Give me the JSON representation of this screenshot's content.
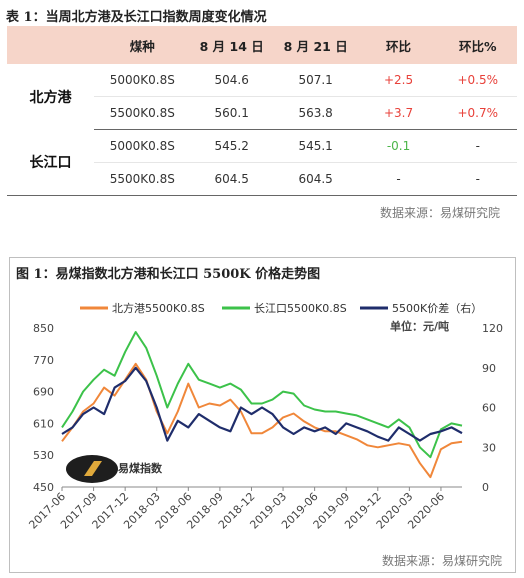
{
  "table_caption": "表 1：当周北方港及长江口指数周度变化情况",
  "table": {
    "headers": [
      "煤种",
      "8 月 14 日",
      "8 月 21 日",
      "环比",
      "环比%"
    ],
    "groups": [
      {
        "region": "北方港",
        "rows": [
          {
            "coal": "5000K0.8S",
            "aug14": "504.6",
            "aug21": "507.1",
            "chg": "+2.5",
            "pct": "+0.5%",
            "color": "red"
          },
          {
            "coal": "5500K0.8S",
            "aug14": "560.1",
            "aug21": "563.8",
            "chg": "+3.7",
            "pct": "+0.7%",
            "color": "red"
          }
        ]
      },
      {
        "region": "长江口",
        "rows": [
          {
            "coal": "5000K0.8S",
            "aug14": "545.2",
            "aug21": "545.1",
            "chg": "-0.1",
            "pct": "-",
            "color": "green"
          },
          {
            "coal": "5500K0.8S",
            "aug14": "604.5",
            "aug21": "604.5",
            "chg": "-",
            "pct": "-",
            "color": "none"
          }
        ]
      }
    ]
  },
  "table_source": "数据来源：易煤研究院",
  "chart_caption": "图 1：易煤指数北方港和长江口 5500K 价格走势图",
  "chart_source": "数据来源：易煤研究院",
  "watermark_text": "易煤指数",
  "chart_data": {
    "type": "line",
    "unit_label": "单位：元/吨",
    "x_ticks": [
      "2017-06",
      "2017-09",
      "2017-12",
      "2018-03",
      "2018-06",
      "2018-09",
      "2018-12",
      "2019-03",
      "2019-06",
      "2019-09",
      "2019-12",
      "2020-03",
      "2020-06"
    ],
    "x_range": [
      "2017-06",
      "2020-08"
    ],
    "left_axis": {
      "ticks": [
        450,
        530,
        610,
        690,
        770,
        850
      ],
      "range": [
        450,
        850
      ]
    },
    "right_axis": {
      "ticks": [
        0,
        30,
        60,
        90,
        120
      ],
      "range": [
        0,
        120
      ]
    },
    "grid": false,
    "legend": "top",
    "colors": {
      "north": "#f0873a",
      "yangtze": "#3cc24a",
      "spread": "#1f2d6b"
    },
    "series": [
      {
        "name": "北方港5500K0.8S",
        "axis": "left",
        "points": [
          [
            "2017-06",
            565
          ],
          [
            "2017-07",
            600
          ],
          [
            "2017-08",
            640
          ],
          [
            "2017-09",
            660
          ],
          [
            "2017-10",
            700
          ],
          [
            "2017-11",
            680
          ],
          [
            "2017-12",
            720
          ],
          [
            "2018-01",
            760
          ],
          [
            "2018-02",
            720
          ],
          [
            "2018-03",
            640
          ],
          [
            "2018-04",
            585
          ],
          [
            "2018-05",
            640
          ],
          [
            "2018-06",
            710
          ],
          [
            "2018-07",
            650
          ],
          [
            "2018-08",
            660
          ],
          [
            "2018-09",
            655
          ],
          [
            "2018-10",
            670
          ],
          [
            "2018-11",
            640
          ],
          [
            "2018-12",
            585
          ],
          [
            "2019-01",
            585
          ],
          [
            "2019-02",
            600
          ],
          [
            "2019-03",
            625
          ],
          [
            "2019-04",
            635
          ],
          [
            "2019-05",
            615
          ],
          [
            "2019-06",
            600
          ],
          [
            "2019-07",
            590
          ],
          [
            "2019-08",
            590
          ],
          [
            "2019-09",
            580
          ],
          [
            "2019-10",
            570
          ],
          [
            "2019-11",
            555
          ],
          [
            "2019-12",
            550
          ],
          [
            "2020-01",
            555
          ],
          [
            "2020-02",
            560
          ],
          [
            "2020-03",
            555
          ],
          [
            "2020-04",
            510
          ],
          [
            "2020-05",
            475
          ],
          [
            "2020-06",
            545
          ],
          [
            "2020-07",
            560
          ],
          [
            "2020-08",
            563.8
          ]
        ]
      },
      {
        "name": "长江口5500K0.8S",
        "axis": "left",
        "points": [
          [
            "2017-06",
            600
          ],
          [
            "2017-07",
            640
          ],
          [
            "2017-08",
            690
          ],
          [
            "2017-09",
            720
          ],
          [
            "2017-10",
            745
          ],
          [
            "2017-11",
            730
          ],
          [
            "2017-12",
            790
          ],
          [
            "2018-01",
            840
          ],
          [
            "2018-02",
            800
          ],
          [
            "2018-03",
            730
          ],
          [
            "2018-04",
            650
          ],
          [
            "2018-05",
            710
          ],
          [
            "2018-06",
            760
          ],
          [
            "2018-07",
            720
          ],
          [
            "2018-08",
            710
          ],
          [
            "2018-09",
            700
          ],
          [
            "2018-10",
            710
          ],
          [
            "2018-11",
            695
          ],
          [
            "2018-12",
            660
          ],
          [
            "2019-01",
            660
          ],
          [
            "2019-02",
            670
          ],
          [
            "2019-03",
            690
          ],
          [
            "2019-04",
            685
          ],
          [
            "2019-05",
            655
          ],
          [
            "2019-06",
            645
          ],
          [
            "2019-07",
            640
          ],
          [
            "2019-08",
            640
          ],
          [
            "2019-09",
            635
          ],
          [
            "2019-10",
            630
          ],
          [
            "2019-11",
            620
          ],
          [
            "2019-12",
            610
          ],
          [
            "2020-01",
            600
          ],
          [
            "2020-02",
            620
          ],
          [
            "2020-03",
            600
          ],
          [
            "2020-04",
            550
          ],
          [
            "2020-05",
            525
          ],
          [
            "2020-06",
            595
          ],
          [
            "2020-07",
            610
          ],
          [
            "2020-08",
            604.5
          ]
        ]
      },
      {
        "name": "5500K价差（右）",
        "axis": "right",
        "points": [
          [
            "2017-06",
            40
          ],
          [
            "2017-07",
            45
          ],
          [
            "2017-08",
            55
          ],
          [
            "2017-09",
            60
          ],
          [
            "2017-10",
            55
          ],
          [
            "2017-11",
            75
          ],
          [
            "2017-12",
            80
          ],
          [
            "2018-01",
            90
          ],
          [
            "2018-02",
            80
          ],
          [
            "2018-03",
            60
          ],
          [
            "2018-04",
            35
          ],
          [
            "2018-05",
            50
          ],
          [
            "2018-06",
            45
          ],
          [
            "2018-07",
            55
          ],
          [
            "2018-08",
            50
          ],
          [
            "2018-09",
            45
          ],
          [
            "2018-10",
            42
          ],
          [
            "2018-11",
            60
          ],
          [
            "2018-12",
            55
          ],
          [
            "2019-01",
            60
          ],
          [
            "2019-02",
            55
          ],
          [
            "2019-03",
            45
          ],
          [
            "2019-04",
            40
          ],
          [
            "2019-05",
            45
          ],
          [
            "2019-06",
            42
          ],
          [
            "2019-07",
            45
          ],
          [
            "2019-08",
            40
          ],
          [
            "2019-09",
            48
          ],
          [
            "2019-10",
            45
          ],
          [
            "2019-11",
            42
          ],
          [
            "2019-12",
            38
          ],
          [
            "2020-01",
            35
          ],
          [
            "2020-02",
            45
          ],
          [
            "2020-03",
            40
          ],
          [
            "2020-04",
            35
          ],
          [
            "2020-05",
            40
          ],
          [
            "2020-06",
            42
          ],
          [
            "2020-07",
            45
          ],
          [
            "2020-08",
            40.7
          ]
        ]
      }
    ]
  }
}
